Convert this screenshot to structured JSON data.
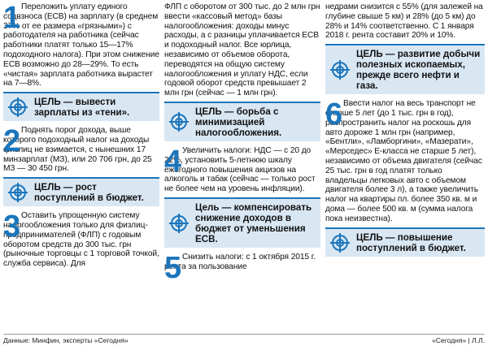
{
  "items": [
    {
      "n": "1",
      "text": "Переложить уплату единого соцвзноса (ЕСВ) на зарплату (в среднем 37% от ее размера «грязными») с работодателя на работника (сейчас работники платят только 15—17% подоходного налога). При этом снижение ЕСВ возможно до 28—29%. То есть «чистая» зарплата работника вырастет на 7—8%."
    },
    {
      "n": "2",
      "text": "Поднять порог дохода, выше которого подоходный налог на доходы физлиц не взимается, с нынешних 17 минзарплат (МЗ), или 20 706 грн, до 25 МЗ — 30 450 грн."
    },
    {
      "n": "3",
      "text": "Оставить упрощенную систему налогообложения только для физлиц-предпринимателей (ФЛП) с годовым оборотом средств до 300 тыс. грн (рыночные торговцы с 1 торговой точкой, служба сервиса). Для"
    },
    {
      "text": "ФЛП с оборотом от 300 тыс. до 2 млн грн ввести «кассовый метод» базы налогообложения: доходы минус расходы, а с разницы уплачивается ЕСВ и подоходный налог. Все юрлица, независимо от объемов оборота, переводятся на общую систему налогообложения и уплату НДС, если годовой оборот средств превышает 2 млн грн (сейчас — 1 млн грн)."
    },
    {
      "n": "4",
      "text": "Увеличить налоги: НДС — с 20 до 22%, установить 5-летнюю шкалу ежегодного повышения акцизов на алкоголь и табак (сейчас — только рост не более чем на уровень инфляции)."
    },
    {
      "n": "5",
      "text": "Снизить налоги: с 1 октября 2015 г. рента за пользование"
    },
    {
      "text": "недрами снизится с 55% (для залежей на глубине свыше 5 км) и 28% (до 5 км) до 28% и 14% соответственно. С 1 января 2018 г. рента составит 20% и 10%."
    },
    {
      "n": "6",
      "text": "Ввести налог на весь транспорт не старше 5 лет (до 1 тыс. грн в год), распространить налог на роскошь для авто дороже 1 млн грн (например, «Бентли», «Ламборгини», «Мазерати», «Мерседес» Е-класса не старше 5 лет), независимо от объема двигателя (сейчас 25 тыс. грн в год платят только владельцы легковых авто с объемом двигателя более 3 л), а также увеличить налог на квартиры пл. более 350 кв. м и дома — более 500 кв. м (сумма налога пока неизвестна)."
    }
  ],
  "goals": [
    "ЦЕЛЬ — вывести зарплаты из «тени».",
    "ЦЕЛЬ — рост поступлений в бюджет.",
    "ЦЕЛЬ — борьба с минимизацией налогообложения.",
    "Цель — компенсировать снижение доходов в бюджет от уменьшения ЕСВ.",
    "ЦЕЛЬ — развитие добычи полезных ископаемых, прежде всего нефти и газа.",
    "ЦЕЛЬ — повышение поступлений в бюджет."
  ],
  "footer": {
    "source": "Данные: Минфин, эксперты «Сегодня»",
    "credit": "«Сегодня» | Л.Л."
  },
  "colors": {
    "accent": "#1b75bb",
    "goal_bg": "#d9e7f3"
  },
  "icon": "target-icon"
}
